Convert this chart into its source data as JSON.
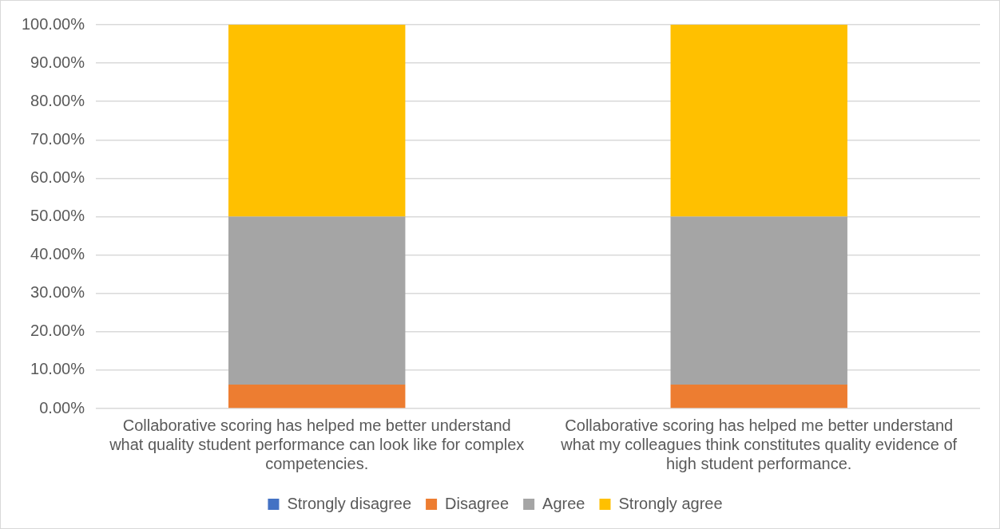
{
  "chart_data": {
    "type": "bar",
    "stacked": true,
    "categories": [
      "Collaborative scoring has helped me better understand what quality student performance can look like for complex competencies.",
      "Collaborative scoring has helped me better understand what my colleagues think constitutes quality evidence of high student performance."
    ],
    "series": [
      {
        "name": "Strongly disagree",
        "color": "#4472c4",
        "values": [
          0,
          0
        ]
      },
      {
        "name": "Disagree",
        "color": "#ed7d31",
        "values": [
          6.25,
          6.25
        ]
      },
      {
        "name": "Agree",
        "color": "#a5a5a5",
        "values": [
          43.75,
          43.75
        ]
      },
      {
        "name": "Strongly agree",
        "color": "#ffc000",
        "values": [
          50,
          50
        ]
      }
    ],
    "ylim": [
      0,
      100
    ],
    "yticks": [
      {
        "value": 0,
        "label": "0.00%"
      },
      {
        "value": 10,
        "label": "10.00%"
      },
      {
        "value": 20,
        "label": "20.00%"
      },
      {
        "value": 30,
        "label": "30.00%"
      },
      {
        "value": 40,
        "label": "40.00%"
      },
      {
        "value": 50,
        "label": "50.00%"
      },
      {
        "value": 60,
        "label": "60.00%"
      },
      {
        "value": 70,
        "label": "70.00%"
      },
      {
        "value": 80,
        "label": "80.00%"
      },
      {
        "value": 90,
        "label": "90.00%"
      },
      {
        "value": 100,
        "label": "100.00%"
      }
    ],
    "grid": "y",
    "legend": "bottom"
  }
}
